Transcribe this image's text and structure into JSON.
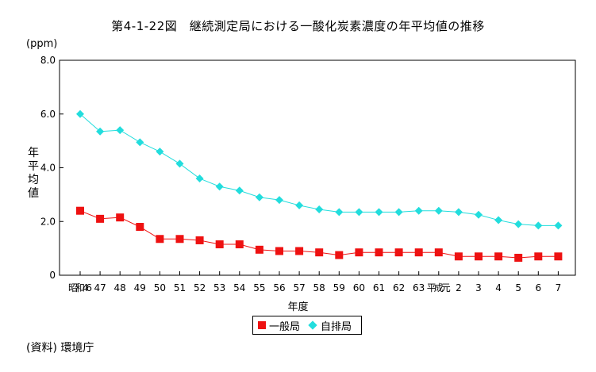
{
  "page": {
    "title": "第4-1-22図　継続測定局における一酸化炭素濃度の年平均値の推移",
    "unit": "(ppm)",
    "ylabel": "年平均値",
    "xlabel": "年度",
    "source": "(資料) 環境庁"
  },
  "chart_data": {
    "type": "line",
    "title": "第4-1-22図　継続測定局における一酸化炭素濃度の年平均値の推移",
    "xlabel": "年度",
    "ylabel": "年平均値",
    "unit": "(ppm)",
    "ylim": [
      0,
      8
    ],
    "yticks": [
      "0",
      "2.0",
      "4.0",
      "6.0",
      "8.0"
    ],
    "categories": [
      "昭和46",
      "47",
      "48",
      "49",
      "50",
      "51",
      "52",
      "53",
      "54",
      "55",
      "56",
      "57",
      "58",
      "59",
      "60",
      "61",
      "62",
      "63",
      "平成元",
      "2",
      "3",
      "4",
      "5",
      "6",
      "7"
    ],
    "series": [
      {
        "name": "一般局",
        "color": "#ee1111",
        "marker": "square",
        "values": [
          2.4,
          2.1,
          2.15,
          1.8,
          1.35,
          1.35,
          1.3,
          1.15,
          1.15,
          0.95,
          0.9,
          0.9,
          0.85,
          0.75,
          0.85,
          0.85,
          0.85,
          0.85,
          0.85,
          0.7,
          0.7,
          0.7,
          0.65,
          0.7,
          0.7
        ]
      },
      {
        "name": "自排局",
        "color": "#22dddd",
        "marker": "diamond",
        "values": [
          6.0,
          5.35,
          5.4,
          4.95,
          4.6,
          4.15,
          3.6,
          3.3,
          3.15,
          2.9,
          2.8,
          2.6,
          2.45,
          2.35,
          2.35,
          2.35,
          2.35,
          2.4,
          2.4,
          2.35,
          2.25,
          2.05,
          1.9,
          1.85,
          1.85
        ]
      }
    ],
    "grid": false,
    "legend": "bottom"
  }
}
